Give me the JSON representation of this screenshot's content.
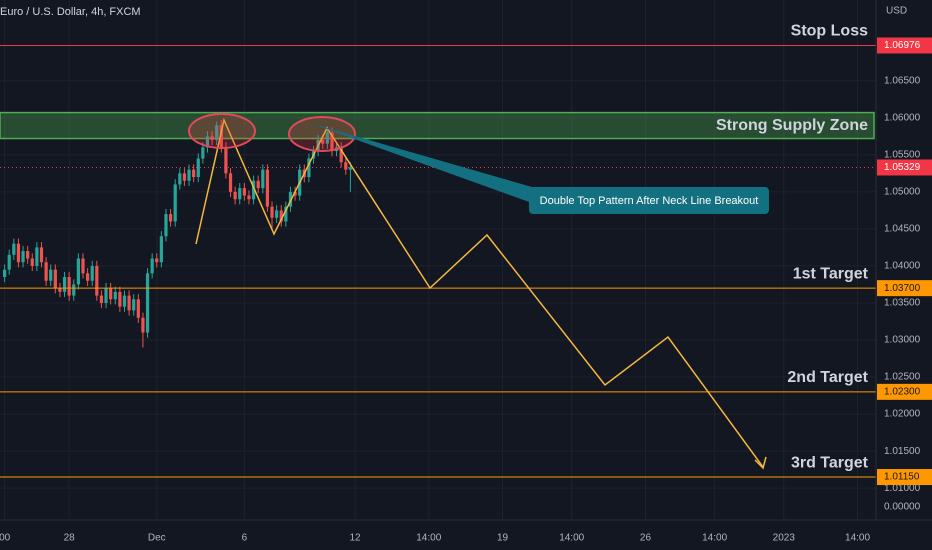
{
  "chart_data": {
    "type": "candlestick",
    "title": "Euro / U.S. Dollar, 4h, FXCM",
    "currency": "USD",
    "up_color": "#26a69a",
    "down_color": "#ef5350",
    "x": [
      0,
      1,
      2,
      3,
      4,
      5,
      6,
      7,
      8,
      9,
      10,
      11,
      12,
      13,
      14,
      15,
      16,
      17,
      18,
      19,
      20,
      21,
      22,
      23,
      24,
      25,
      26,
      27,
      28,
      29,
      30,
      31,
      32,
      33,
      34,
      35,
      36,
      37,
      38,
      39,
      40,
      41,
      42,
      43,
      44,
      45,
      46,
      47,
      48,
      49,
      50,
      51,
      52,
      53,
      54,
      55,
      56,
      57,
      58,
      59,
      60,
      61,
      62,
      63,
      64,
      65,
      66,
      67,
      68,
      69,
      70,
      71,
      72,
      73,
      74,
      75
    ],
    "open": [
      1.0385,
      1.0395,
      1.0415,
      1.043,
      1.0405,
      1.042,
      1.041,
      1.04,
      1.0425,
      1.0405,
      1.038,
      1.0395,
      1.037,
      1.0365,
      1.0385,
      1.036,
      1.0375,
      1.041,
      1.039,
      1.038,
      1.04,
      1.036,
      1.035,
      1.037,
      1.0355,
      1.0365,
      1.0345,
      1.036,
      1.034,
      1.0355,
      1.033,
      1.031,
      1.039,
      1.041,
      1.0405,
      1.044,
      1.047,
      1.046,
      1.051,
      1.0525,
      1.0515,
      1.053,
      1.052,
      1.0545,
      1.056,
      1.0575,
      1.057,
      1.059,
      1.056,
      1.0525,
      1.05,
      1.049,
      1.0505,
      1.0495,
      1.049,
      1.0515,
      1.0505,
      1.053,
      1.048,
      1.0465,
      1.0475,
      1.046,
      1.048,
      1.05,
      1.0495,
      1.053,
      1.052,
      1.0545,
      1.0555,
      1.057,
      1.0565,
      1.058,
      1.0555,
      1.056,
      1.054,
      1.053
    ],
    "high": [
      1.0402,
      1.0422,
      1.0437,
      1.0437,
      1.0427,
      1.0427,
      1.0417,
      1.0432,
      1.0432,
      1.0412,
      1.0402,
      1.0402,
      1.0377,
      1.0392,
      1.0392,
      1.0382,
      1.0417,
      1.0417,
      1.0397,
      1.0407,
      1.0407,
      1.0367,
      1.0377,
      1.0377,
      1.0372,
      1.0372,
      1.0367,
      1.0367,
      1.0362,
      1.0362,
      1.0337,
      1.0397,
      1.0417,
      1.0417,
      1.0447,
      1.0477,
      1.0477,
      1.0517,
      1.0532,
      1.0532,
      1.0537,
      1.0537,
      1.0552,
      1.0567,
      1.0582,
      1.0582,
      1.0595,
      1.0597,
      1.0567,
      1.0532,
      1.0507,
      1.0512,
      1.0512,
      1.0502,
      1.0522,
      1.0522,
      1.0537,
      1.0537,
      1.0487,
      1.0482,
      1.0482,
      1.0487,
      1.0507,
      1.0507,
      1.0537,
      1.0537,
      1.0552,
      1.0562,
      1.0577,
      1.0577,
      1.0588,
      1.0587,
      1.0567,
      1.0567,
      1.0547,
      1.054
    ],
    "low": [
      1.0378,
      1.0388,
      1.0408,
      1.0398,
      1.0398,
      1.0403,
      1.0393,
      1.0393,
      1.0398,
      1.0373,
      1.0373,
      1.0363,
      1.0358,
      1.0358,
      1.0353,
      1.0353,
      1.0368,
      1.0383,
      1.0373,
      1.0373,
      1.0353,
      1.0343,
      1.0343,
      1.0348,
      1.0348,
      1.0338,
      1.0338,
      1.0333,
      1.0333,
      1.0323,
      1.029,
      1.0303,
      1.0383,
      1.0398,
      1.0398,
      1.0433,
      1.0453,
      1.0453,
      1.0503,
      1.0508,
      1.0508,
      1.0513,
      1.0513,
      1.0538,
      1.0553,
      1.0563,
      1.0563,
      1.0553,
      1.0518,
      1.0493,
      1.0483,
      1.0483,
      1.0488,
      1.0483,
      1.0483,
      1.0498,
      1.0498,
      1.0473,
      1.0448,
      1.0458,
      1.0453,
      1.0453,
      1.0473,
      1.0488,
      1.0488,
      1.0513,
      1.0513,
      1.0538,
      1.0548,
      1.0558,
      1.0558,
      1.0548,
      1.0548,
      1.0533,
      1.0523,
      1.05
    ],
    "close": [
      1.0395,
      1.0415,
      1.043,
      1.0405,
      1.042,
      1.041,
      1.04,
      1.0425,
      1.0405,
      1.038,
      1.0395,
      1.037,
      1.0365,
      1.0385,
      1.036,
      1.0375,
      1.041,
      1.039,
      1.038,
      1.04,
      1.036,
      1.035,
      1.037,
      1.0355,
      1.0365,
      1.0345,
      1.036,
      1.034,
      1.0355,
      1.033,
      1.031,
      1.039,
      1.041,
      1.0405,
      1.044,
      1.047,
      1.046,
      1.051,
      1.0525,
      1.0515,
      1.053,
      1.052,
      1.0545,
      1.056,
      1.0575,
      1.057,
      1.059,
      1.056,
      1.0525,
      1.05,
      1.049,
      1.0505,
      1.0495,
      1.049,
      1.0515,
      1.0505,
      1.053,
      1.048,
      1.0465,
      1.0475,
      1.046,
      1.048,
      1.05,
      1.0495,
      1.053,
      1.052,
      1.0545,
      1.0555,
      1.057,
      1.0565,
      1.058,
      1.0555,
      1.056,
      1.054,
      1.053,
      1.0533
    ],
    "xlim": [
      -1,
      189
    ],
    "ylim": [
      1.0057,
      1.0759
    ],
    "yticks": [
      {
        "value": 1.065,
        "label": "1.06500"
      },
      {
        "value": 1.06,
        "label": "1.06000"
      },
      {
        "value": 1.055,
        "label": "1.05500"
      },
      {
        "value": 1.05,
        "label": "1.05000"
      },
      {
        "value": 1.045,
        "label": "1.04500"
      },
      {
        "value": 1.04,
        "label": "1.04000"
      },
      {
        "value": 1.035,
        "label": "1.03500"
      },
      {
        "value": 1.03,
        "label": "1.03000"
      },
      {
        "value": 1.025,
        "label": "1.02500"
      },
      {
        "value": 1.02,
        "label": "1.02000"
      },
      {
        "value": 1.015,
        "label": "1.01500"
      },
      {
        "value": 1.01,
        "label": "1.01000"
      }
    ],
    "axis_bottom_label": "0.00000",
    "xticks": [
      {
        "value": 0,
        "label": "00"
      },
      {
        "value": 14,
        "label": "28"
      },
      {
        "value": 33,
        "label": "Dec"
      },
      {
        "value": 52,
        "label": "6"
      },
      {
        "value": 76,
        "label": "12"
      },
      {
        "value": 92,
        "label": "14:00"
      },
      {
        "value": 108,
        "label": "19"
      },
      {
        "value": 123,
        "label": "14:00"
      },
      {
        "value": 139,
        "label": "26"
      },
      {
        "value": 154,
        "label": "14:00"
      },
      {
        "value": 169,
        "label": "2023"
      },
      {
        "value": 185,
        "label": "14:00"
      }
    ],
    "levels": [
      {
        "name": "Stop Loss",
        "value": 1.06976,
        "label": "1.06976",
        "color": "#f23645"
      },
      {
        "name": "1st Target",
        "value": 1.037,
        "label": "1.03700",
        "color": "#ff9800"
      },
      {
        "name": "2nd Target",
        "value": 1.023,
        "label": "1.02300",
        "color": "#ff9800"
      },
      {
        "name": "3rd Target",
        "value": 1.0115,
        "label": "1.01150",
        "color": "#ff9800"
      }
    ],
    "zone": {
      "name": "Strong Supply Zone",
      "high": 1.0607,
      "low": 1.0572,
      "color": "#4caf50"
    },
    "current_price": {
      "value": 1.05329,
      "label": "1.05329",
      "color": "#f23645"
    },
    "annotation": "Double Top Pattern After Neck Line Breakout"
  }
}
